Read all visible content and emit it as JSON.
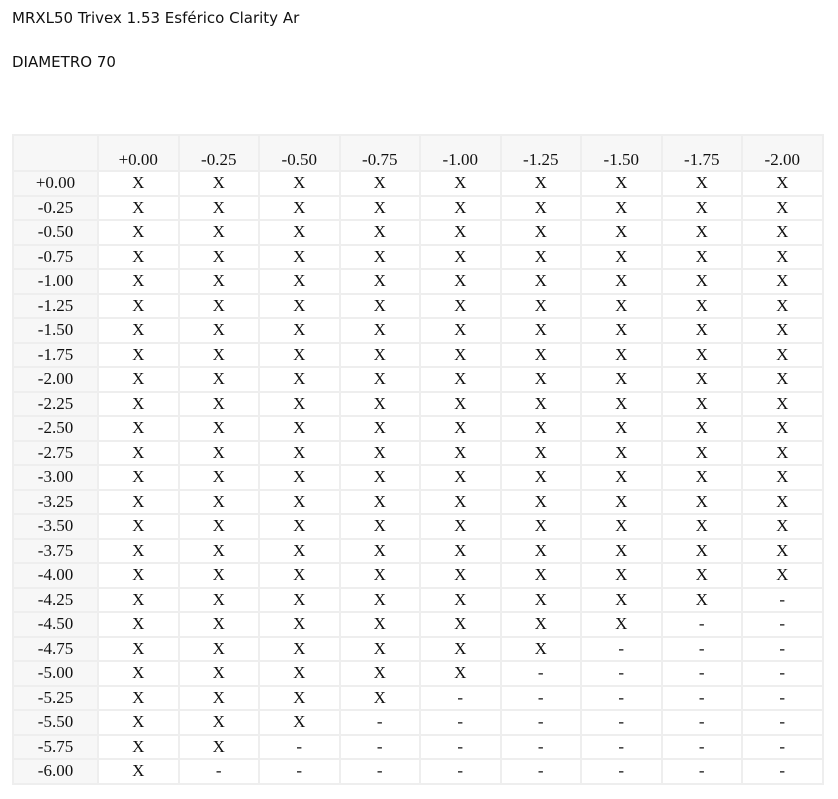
{
  "title": "MRXL50 Trivex 1.53 Esférico Clarity Ar",
  "subtitle": "DIAMETRO 70",
  "table": {
    "columns": [
      "+0.00",
      "-0.25",
      "-0.50",
      "-0.75",
      "-1.00",
      "-1.25",
      "-1.50",
      "-1.75",
      "-2.00"
    ],
    "rows": [
      {
        "label": "+0.00",
        "cells": [
          "X",
          "X",
          "X",
          "X",
          "X",
          "X",
          "X",
          "X",
          "X"
        ]
      },
      {
        "label": "-0.25",
        "cells": [
          "X",
          "X",
          "X",
          "X",
          "X",
          "X",
          "X",
          "X",
          "X"
        ]
      },
      {
        "label": "-0.50",
        "cells": [
          "X",
          "X",
          "X",
          "X",
          "X",
          "X",
          "X",
          "X",
          "X"
        ]
      },
      {
        "label": "-0.75",
        "cells": [
          "X",
          "X",
          "X",
          "X",
          "X",
          "X",
          "X",
          "X",
          "X"
        ]
      },
      {
        "label": "-1.00",
        "cells": [
          "X",
          "X",
          "X",
          "X",
          "X",
          "X",
          "X",
          "X",
          "X"
        ]
      },
      {
        "label": "-1.25",
        "cells": [
          "X",
          "X",
          "X",
          "X",
          "X",
          "X",
          "X",
          "X",
          "X"
        ]
      },
      {
        "label": "-1.50",
        "cells": [
          "X",
          "X",
          "X",
          "X",
          "X",
          "X",
          "X",
          "X",
          "X"
        ]
      },
      {
        "label": "-1.75",
        "cells": [
          "X",
          "X",
          "X",
          "X",
          "X",
          "X",
          "X",
          "X",
          "X"
        ]
      },
      {
        "label": "-2.00",
        "cells": [
          "X",
          "X",
          "X",
          "X",
          "X",
          "X",
          "X",
          "X",
          "X"
        ]
      },
      {
        "label": "-2.25",
        "cells": [
          "X",
          "X",
          "X",
          "X",
          "X",
          "X",
          "X",
          "X",
          "X"
        ]
      },
      {
        "label": "-2.50",
        "cells": [
          "X",
          "X",
          "X",
          "X",
          "X",
          "X",
          "X",
          "X",
          "X"
        ]
      },
      {
        "label": "-2.75",
        "cells": [
          "X",
          "X",
          "X",
          "X",
          "X",
          "X",
          "X",
          "X",
          "X"
        ]
      },
      {
        "label": "-3.00",
        "cells": [
          "X",
          "X",
          "X",
          "X",
          "X",
          "X",
          "X",
          "X",
          "X"
        ]
      },
      {
        "label": "-3.25",
        "cells": [
          "X",
          "X",
          "X",
          "X",
          "X",
          "X",
          "X",
          "X",
          "X"
        ]
      },
      {
        "label": "-3.50",
        "cells": [
          "X",
          "X",
          "X",
          "X",
          "X",
          "X",
          "X",
          "X",
          "X"
        ]
      },
      {
        "label": "-3.75",
        "cells": [
          "X",
          "X",
          "X",
          "X",
          "X",
          "X",
          "X",
          "X",
          "X"
        ]
      },
      {
        "label": "-4.00",
        "cells": [
          "X",
          "X",
          "X",
          "X",
          "X",
          "X",
          "X",
          "X",
          "X"
        ]
      },
      {
        "label": "-4.25",
        "cells": [
          "X",
          "X",
          "X",
          "X",
          "X",
          "X",
          "X",
          "X",
          "-"
        ]
      },
      {
        "label": "-4.50",
        "cells": [
          "X",
          "X",
          "X",
          "X",
          "X",
          "X",
          "X",
          "-",
          "-"
        ]
      },
      {
        "label": "-4.75",
        "cells": [
          "X",
          "X",
          "X",
          "X",
          "X",
          "X",
          "-",
          "-",
          "-"
        ]
      },
      {
        "label": "-5.00",
        "cells": [
          "X",
          "X",
          "X",
          "X",
          "X",
          "-",
          "-",
          "-",
          "-"
        ]
      },
      {
        "label": "-5.25",
        "cells": [
          "X",
          "X",
          "X",
          "X",
          "-",
          "-",
          "-",
          "-",
          "-"
        ]
      },
      {
        "label": "-5.50",
        "cells": [
          "X",
          "X",
          "X",
          "-",
          "-",
          "-",
          "-",
          "-",
          "-"
        ]
      },
      {
        "label": "-5.75",
        "cells": [
          "X",
          "X",
          "-",
          "-",
          "-",
          "-",
          "-",
          "-",
          "-"
        ]
      },
      {
        "label": "-6.00",
        "cells": [
          "X",
          "-",
          "-",
          "-",
          "-",
          "-",
          "-",
          "-",
          "-"
        ]
      }
    ]
  }
}
